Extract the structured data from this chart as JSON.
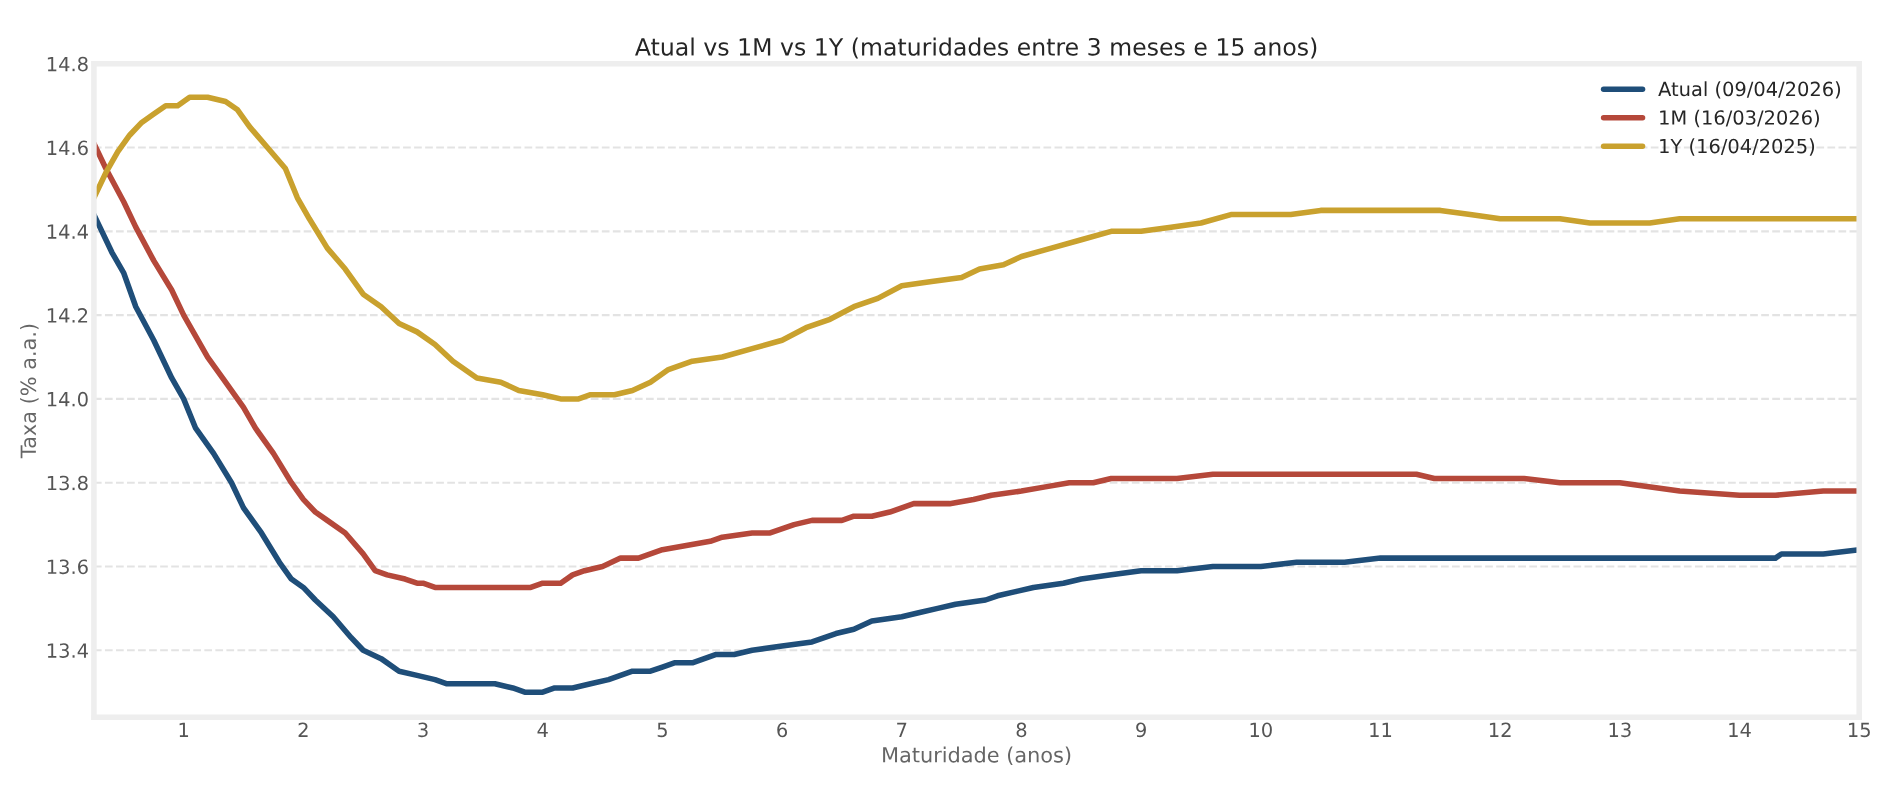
{
  "chart_data": {
    "type": "line",
    "title": "Atual vs 1M vs 1Y (maturidades entre 3 meses e 15 anos)",
    "xlabel": "Maturidade (anos)",
    "ylabel": "Taxa (% a.a.)",
    "xlim": [
      0.25,
      15
    ],
    "xticks": [
      1,
      2,
      3,
      4,
      5,
      6,
      7,
      8,
      9,
      10,
      11,
      12,
      13,
      14,
      15
    ],
    "ylim": [
      13.24,
      14.8
    ],
    "yticks": [
      13.4,
      13.6,
      13.8,
      {
        "value": 14.0,
        "label": "14.0"
      },
      14.2,
      14.4,
      14.6,
      14.8
    ],
    "grid": "y",
    "legend": "top right",
    "marker": "none",
    "line_style": "solid",
    "series": [
      {
        "name": "Atual (09/04/2026)",
        "color": "#1f4e79",
        "x": [
          0.25,
          0.3,
          0.4,
          0.5,
          0.6,
          0.75,
          0.9,
          1.0,
          1.1,
          1.25,
          1.4,
          1.5,
          1.65,
          1.8,
          1.9,
          2.0,
          2.1,
          2.25,
          2.4,
          2.5,
          2.65,
          2.8,
          2.95,
          3.1,
          3.2,
          3.5,
          3.6,
          3.75,
          3.85,
          4.0,
          4.1,
          4.25,
          4.4,
          4.55,
          4.65,
          4.75,
          4.9,
          5.0,
          5.1,
          5.25,
          5.35,
          5.45,
          5.6,
          5.75,
          6.0,
          6.25,
          6.45,
          6.6,
          6.75,
          7.0,
          7.15,
          7.3,
          7.45,
          7.7,
          7.8,
          7.95,
          8.1,
          8.35,
          8.5,
          8.75,
          9.0,
          9.3,
          9.6,
          10.0,
          10.3,
          10.7,
          11.0,
          12.0,
          13.0,
          14.3,
          14.35,
          14.7,
          15.0
        ],
        "values": [
          14.44,
          14.41,
          14.35,
          14.3,
          14.22,
          14.14,
          14.05,
          14.0,
          13.93,
          13.87,
          13.8,
          13.74,
          13.68,
          13.61,
          13.57,
          13.55,
          13.52,
          13.48,
          13.43,
          13.4,
          13.38,
          13.35,
          13.34,
          13.33,
          13.32,
          13.32,
          13.32,
          13.31,
          13.3,
          13.3,
          13.31,
          13.31,
          13.32,
          13.33,
          13.34,
          13.35,
          13.35,
          13.36,
          13.37,
          13.37,
          13.38,
          13.39,
          13.39,
          13.4,
          13.41,
          13.42,
          13.44,
          13.45,
          13.47,
          13.48,
          13.49,
          13.5,
          13.51,
          13.52,
          13.53,
          13.54,
          13.55,
          13.56,
          13.57,
          13.58,
          13.59,
          13.59,
          13.6,
          13.6,
          13.61,
          13.61,
          13.62,
          13.62,
          13.62,
          13.62,
          13.63,
          13.63,
          13.64
        ]
      },
      {
        "name": "1M (16/03/2026)",
        "color": "#b5483a",
        "x": [
          0.25,
          0.35,
          0.5,
          0.6,
          0.75,
          0.9,
          1.0,
          1.1,
          1.2,
          1.35,
          1.5,
          1.6,
          1.75,
          1.9,
          2.0,
          2.1,
          2.2,
          2.35,
          2.5,
          2.6,
          2.7,
          2.85,
          2.95,
          3.0,
          3.1,
          3.5,
          3.9,
          4.0,
          4.15,
          4.25,
          4.35,
          4.5,
          4.65,
          4.8,
          5.0,
          5.2,
          5.4,
          5.5,
          5.75,
          5.9,
          6.1,
          6.25,
          6.5,
          6.6,
          6.75,
          6.9,
          7.0,
          7.1,
          7.4,
          7.6,
          7.75,
          8.0,
          8.2,
          8.4,
          8.6,
          8.75,
          9.3,
          9.6,
          10.0,
          11.0,
          11.3,
          11.45,
          12.2,
          12.5,
          13.0,
          13.5,
          14.0,
          14.3,
          14.7,
          15.0
        ],
        "values": [
          14.61,
          14.55,
          14.47,
          14.41,
          14.33,
          14.26,
          14.2,
          14.15,
          14.1,
          14.04,
          13.98,
          13.93,
          13.87,
          13.8,
          13.76,
          13.73,
          13.71,
          13.68,
          13.63,
          13.59,
          13.58,
          13.57,
          13.56,
          13.56,
          13.55,
          13.55,
          13.55,
          13.56,
          13.56,
          13.58,
          13.59,
          13.6,
          13.62,
          13.62,
          13.64,
          13.65,
          13.66,
          13.67,
          13.68,
          13.68,
          13.7,
          13.71,
          13.71,
          13.72,
          13.72,
          13.73,
          13.74,
          13.75,
          13.75,
          13.76,
          13.77,
          13.78,
          13.79,
          13.8,
          13.8,
          13.81,
          13.81,
          13.82,
          13.82,
          13.82,
          13.82,
          13.81,
          13.81,
          13.8,
          13.8,
          13.78,
          13.77,
          13.77,
          13.78,
          13.78
        ]
      },
      {
        "name": "1Y (16/04/2025)",
        "color": "#c9a12e",
        "x": [
          0.25,
          0.35,
          0.45,
          0.55,
          0.65,
          0.75,
          0.85,
          0.95,
          1.05,
          1.2,
          1.35,
          1.45,
          1.55,
          1.7,
          1.85,
          1.95,
          2.05,
          2.2,
          2.35,
          2.5,
          2.65,
          2.8,
          2.95,
          3.1,
          3.25,
          3.45,
          3.65,
          3.8,
          4.0,
          4.15,
          4.3,
          4.4,
          4.6,
          4.75,
          4.9,
          5.05,
          5.25,
          5.5,
          5.75,
          6.0,
          6.2,
          6.4,
          6.6,
          6.8,
          7.0,
          7.25,
          7.5,
          7.65,
          7.85,
          8.0,
          8.25,
          8.5,
          8.75,
          9.0,
          9.25,
          9.5,
          9.75,
          10.0,
          10.25,
          10.5,
          11.0,
          11.5,
          11.75,
          12.0,
          12.5,
          12.75,
          13.25,
          13.5,
          14.0,
          15.0
        ],
        "values": [
          14.48,
          14.54,
          14.59,
          14.63,
          14.66,
          14.68,
          14.7,
          14.7,
          14.72,
          14.72,
          14.71,
          14.69,
          14.65,
          14.6,
          14.55,
          14.48,
          14.43,
          14.36,
          14.31,
          14.25,
          14.22,
          14.18,
          14.16,
          14.13,
          14.09,
          14.05,
          14.04,
          14.02,
          14.01,
          14.0,
          14.0,
          14.01,
          14.01,
          14.02,
          14.04,
          14.07,
          14.09,
          14.1,
          14.12,
          14.14,
          14.17,
          14.19,
          14.22,
          14.24,
          14.27,
          14.28,
          14.29,
          14.31,
          14.32,
          14.34,
          14.36,
          14.38,
          14.4,
          14.4,
          14.41,
          14.42,
          14.44,
          14.44,
          14.44,
          14.45,
          14.45,
          14.45,
          14.44,
          14.43,
          14.43,
          14.42,
          14.42,
          14.43,
          14.43,
          14.43
        ]
      }
    ]
  }
}
